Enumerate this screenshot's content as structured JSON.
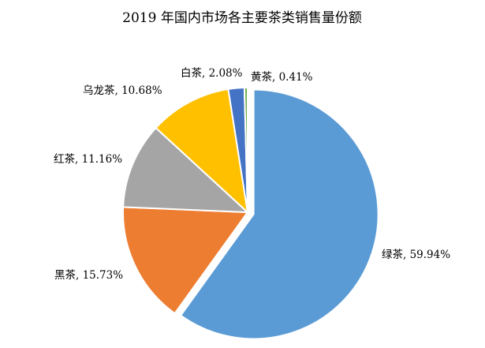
{
  "chart_data": {
    "type": "pie",
    "title": "2019 年国内市场各主要茶类销售量份额",
    "categories": [
      "绿茶",
      "黑茶",
      "红茶",
      "乌龙茶",
      "白茶",
      "黄茶"
    ],
    "values": [
      59.94,
      15.73,
      11.16,
      10.68,
      2.08,
      0.41
    ],
    "labels": [
      "绿茶, 59.94%",
      "黑茶, 15.73%",
      "红茶, 11.16%",
      "乌龙茶, 10.68%",
      "白茶, 2.08%",
      "黄茶, 0.41%"
    ],
    "colors": [
      "#5b9bd5",
      "#ed7d31",
      "#a5a5a5",
      "#ffc000",
      "#4472c4",
      "#70ad47"
    ],
    "start_angle_deg": 90,
    "direction": "clockwise",
    "exploded_slice": "绿茶",
    "legend": "none"
  }
}
